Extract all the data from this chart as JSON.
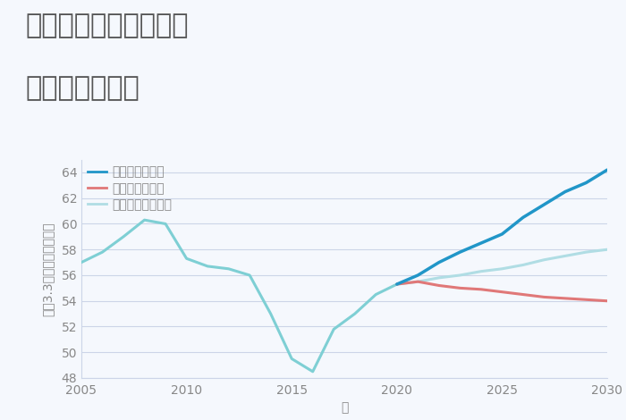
{
  "title_line1": "大阪府八尾市山賀町の",
  "title_line2": "土地の価格推移",
  "xlabel": "年",
  "ylabel": "坪（3.3㎡）単価（万円）",
  "ylim": [
    48,
    65
  ],
  "xlim": [
    2005,
    2030
  ],
  "yticks": [
    48,
    50,
    52,
    54,
    56,
    58,
    60,
    62,
    64
  ],
  "xticks": [
    2005,
    2010,
    2015,
    2020,
    2025,
    2030
  ],
  "historical_x": [
    2005,
    2006,
    2007,
    2008,
    2009,
    2010,
    2011,
    2012,
    2013,
    2014,
    2015,
    2016,
    2017,
    2018,
    2019,
    2020
  ],
  "historical_y": [
    57.0,
    57.8,
    59.0,
    60.3,
    60.0,
    57.3,
    56.7,
    56.5,
    56.0,
    53.0,
    49.5,
    48.5,
    51.8,
    53.0,
    54.5,
    55.3
  ],
  "good_x": [
    2020,
    2021,
    2022,
    2023,
    2024,
    2025,
    2026,
    2027,
    2028,
    2029,
    2030
  ],
  "good_y": [
    55.3,
    56.0,
    57.0,
    57.8,
    58.5,
    59.2,
    60.5,
    61.5,
    62.5,
    63.2,
    64.2
  ],
  "bad_x": [
    2020,
    2021,
    2022,
    2023,
    2024,
    2025,
    2026,
    2027,
    2028,
    2029,
    2030
  ],
  "bad_y": [
    55.3,
    55.5,
    55.2,
    55.0,
    54.9,
    54.7,
    54.5,
    54.3,
    54.2,
    54.1,
    54.0
  ],
  "normal_x": [
    2020,
    2021,
    2022,
    2023,
    2024,
    2025,
    2026,
    2027,
    2028,
    2029,
    2030
  ],
  "normal_y": [
    55.3,
    55.5,
    55.8,
    56.0,
    56.3,
    56.5,
    56.8,
    57.2,
    57.5,
    57.8,
    58.0
  ],
  "color_historical": "#7ecfd4",
  "color_good": "#2196c8",
  "color_bad": "#e07878",
  "color_normal": "#b0dde4",
  "legend_labels": [
    "グッドシナリオ",
    "バッドシナリオ",
    "ノーマルシナリオ"
  ],
  "background_color": "#f5f8fd",
  "grid_color": "#ccd5e8",
  "title_color": "#555555",
  "axis_color": "#888888",
  "title_fontsize": 22,
  "label_fontsize": 10,
  "tick_fontsize": 10,
  "legend_fontsize": 10,
  "line_width": 2.2
}
